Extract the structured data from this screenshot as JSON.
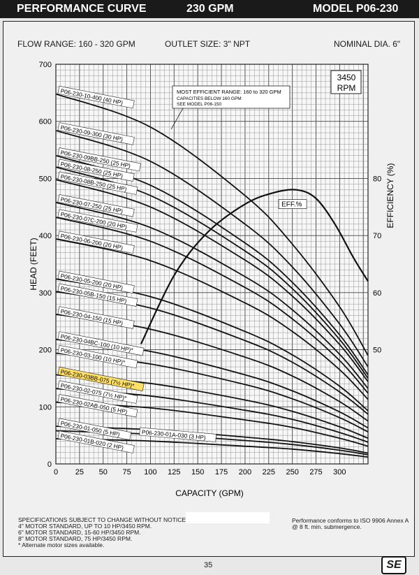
{
  "header": {
    "title": "PERFORMANCE CURVE",
    "flow": "230 GPM",
    "model": "MODEL  P06-230"
  },
  "specs": {
    "flow_range": "FLOW RANGE: 160 - 320 GPM",
    "outlet": "OUTLET SIZE: 3\" NPT",
    "dia": "NOMINAL DIA. 6\""
  },
  "rpm_box": {
    "value": "3450",
    "unit": "RPM"
  },
  "efficient_note": [
    "MOST EFFICIENT RANGE: 160 to 320 GPM",
    "CAPACITIES BELOW 160 GPM",
    "SEE MODEL P06-150"
  ],
  "notes": [
    "SPECIFICATIONS SUBJECT TO CHANGE WITHOUT NOTICE.",
    "4\" MOTOR STANDARD, UP TO 10 HP/3450 RPM.",
    "6\" MOTOR STANDARD, 15-60 HP/3450 RPM.",
    "8\" MOTOR STANDARD, 75 HP/3450 RPM.",
    "* Alternate motor sizes available."
  ],
  "perf_note": [
    "Performance conforms to ISO 9906 Annex A",
    "@ 8 ft. min. submergence."
  ],
  "page_number": "35",
  "logo": "SE",
  "chart_data": {
    "type": "line",
    "xlabel": "CAPACITY (GPM)",
    "ylabel": "HEAD (FEET)",
    "y2label": "EFFICIENCY (%)",
    "xlim": [
      0,
      330
    ],
    "ylim": [
      0,
      700
    ],
    "y2lim": [
      30,
      100
    ],
    "xticks": [
      0,
      25,
      50,
      75,
      100,
      125,
      150,
      175,
      200,
      225,
      250,
      275,
      300
    ],
    "yticks": [
      0,
      100,
      200,
      300,
      400,
      500,
      600,
      700
    ],
    "y2ticks": [
      50,
      60,
      70,
      80
    ],
    "highlight_color": "#ffe066",
    "series": [
      {
        "name": "P06-230-10-400 (40 HP)",
        "x": [
          0,
          100,
          200,
          250,
          300,
          330
        ],
        "y": [
          648,
          590,
          470,
          385,
          275,
          190
        ]
      },
      {
        "name": "P06-230-09-300 (30 HP)",
        "x": [
          0,
          100,
          200,
          250,
          300,
          330
        ],
        "y": [
          584,
          530,
          420,
          345,
          245,
          170
        ]
      },
      {
        "name": "P06-230-09BB-250 (25 HP)",
        "x": [
          0,
          100,
          200,
          250,
          300,
          330
        ],
        "y": [
          540,
          488,
          387,
          318,
          226,
          156
        ]
      },
      {
        "name": "P06-230-08-250 (25 HP)",
        "x": [
          0,
          100,
          200,
          250,
          300,
          330
        ],
        "y": [
          520,
          470,
          373,
          307,
          218,
          150
        ]
      },
      {
        "name": "P06-230-08B-250 (25 HP)",
        "x": [
          0,
          100,
          200,
          250,
          300,
          330
        ],
        "y": [
          498,
          450,
          357,
          294,
          209,
          144
        ]
      },
      {
        "name": "P06-230-07-250 (25 HP)",
        "x": [
          0,
          100,
          200,
          250,
          300,
          330
        ],
        "y": [
          458,
          414,
          328,
          270,
          192,
          132
        ]
      },
      {
        "name": "P06-230-07C-200 (20 HP)",
        "x": [
          0,
          100,
          200,
          250,
          300,
          330
        ],
        "y": [
          432,
          390,
          309,
          254,
          181,
          124
        ]
      },
      {
        "name": "P06-230-06-200 (20 HP)",
        "x": [
          0,
          100,
          200,
          250,
          300,
          330
        ],
        "y": [
          394,
          356,
          282,
          232,
          165,
          113
        ]
      },
      {
        "name": "P06-230-05-200 (20 HP)",
        "x": [
          0,
          100,
          200,
          250,
          300,
          330
        ],
        "y": [
          324,
          293,
          232,
          191,
          136,
          93
        ]
      },
      {
        "name": "P06-230-05B-150 (15 HP)",
        "x": [
          0,
          100,
          200,
          250,
          300,
          330
        ],
        "y": [
          302,
          273,
          216,
          178,
          126,
          87
        ]
      },
      {
        "name": "P06-230-04-150 (15 HP)",
        "x": [
          0,
          100,
          200,
          250,
          300,
          330
        ],
        "y": [
          262,
          236,
          187,
          154,
          109,
          75
        ]
      },
      {
        "name": "P06-230-04BC-100 (10 HP)*",
        "x": [
          0,
          100,
          200,
          250,
          300,
          330
        ],
        "y": [
          218,
          197,
          156,
          128,
          91,
          63
        ]
      },
      {
        "name": "P06-230-03-100 (10 HP)*",
        "x": [
          0,
          100,
          200,
          250,
          300,
          330
        ],
        "y": [
          194,
          175,
          139,
          114,
          81,
          56
        ]
      },
      {
        "name": "P06-230-03BB-075 (7½ HP)*",
        "x": [
          0,
          100,
          200,
          250,
          300,
          330
        ],
        "y": [
          156,
          141,
          112,
          92,
          65,
          45
        ]
      },
      {
        "name": "P06-230-02-075 (7½ HP)*",
        "x": [
          0,
          100,
          200,
          250,
          300,
          330
        ],
        "y": [
          132,
          119,
          94,
          78,
          55,
          38
        ]
      },
      {
        "name": "P06-230-02AB-050 (5 HP)",
        "x": [
          0,
          100,
          200,
          250,
          300,
          330
        ],
        "y": [
          108,
          98,
          77,
          64,
          45,
          31
        ]
      },
      {
        "name": "P06-230-01-050 (5 HP)",
        "x": [
          0,
          100,
          200,
          250,
          300,
          330
        ],
        "y": [
          66,
          60,
          47,
          39,
          28,
          19
        ]
      },
      {
        "name": "P06-230-01A-030 (3 HP)",
        "x": [
          0,
          100,
          200,
          250,
          300,
          330
        ],
        "y": [
          58,
          52,
          41,
          34,
          24,
          16
        ]
      },
      {
        "name": "P06-230-01B-020 (2 HP)",
        "x": [
          0,
          100,
          200,
          250,
          300,
          330
        ],
        "y": [
          44,
          40,
          31,
          26,
          18,
          12
        ]
      }
    ],
    "efficiency": {
      "name": "EFF.%",
      "x": [
        90,
        125,
        160,
        200,
        230,
        255,
        275,
        295,
        315,
        330
      ],
      "y": [
        51,
        63,
        70.5,
        75.5,
        77.5,
        78,
        76.5,
        72,
        66,
        62
      ]
    }
  }
}
